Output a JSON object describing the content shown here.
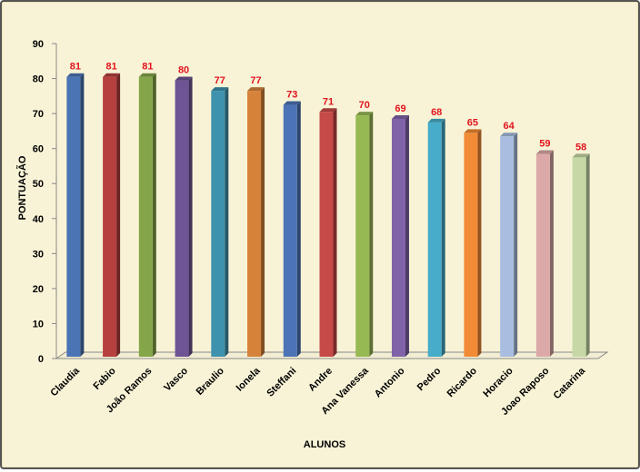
{
  "chart_data": {
    "type": "bar",
    "title": "",
    "xlabel": "ALUNOS",
    "ylabel": "PONTUAÇÃO",
    "ylim": [
      0,
      90
    ],
    "yticks": [
      0,
      10,
      20,
      30,
      40,
      50,
      60,
      70,
      80,
      90
    ],
    "categories": [
      "Claudia",
      "Fabio",
      "João Ramos",
      "Vasco",
      "Braulio",
      "Ionela",
      "Steffani",
      "Andre",
      "Ana Vanessa",
      "Antonio",
      "Pedro",
      "Ricardo",
      "Horacio",
      "Joao Raposo",
      "Catarina"
    ],
    "values": [
      81,
      81,
      81,
      80,
      77,
      77,
      73,
      71,
      70,
      69,
      68,
      65,
      64,
      59,
      58
    ],
    "colors": [
      "#4a74b4",
      "#b5403d",
      "#85a648",
      "#6e5494",
      "#3f92ad",
      "#d7823a",
      "#4b73b6",
      "#c64a47",
      "#97b954",
      "#7f62a8",
      "#46acc9",
      "#f28b35",
      "#a8bde0",
      "#dca9a8",
      "#c5d8a5"
    ],
    "data_label_color": "#e0141e",
    "grid": false,
    "legend": "none"
  }
}
